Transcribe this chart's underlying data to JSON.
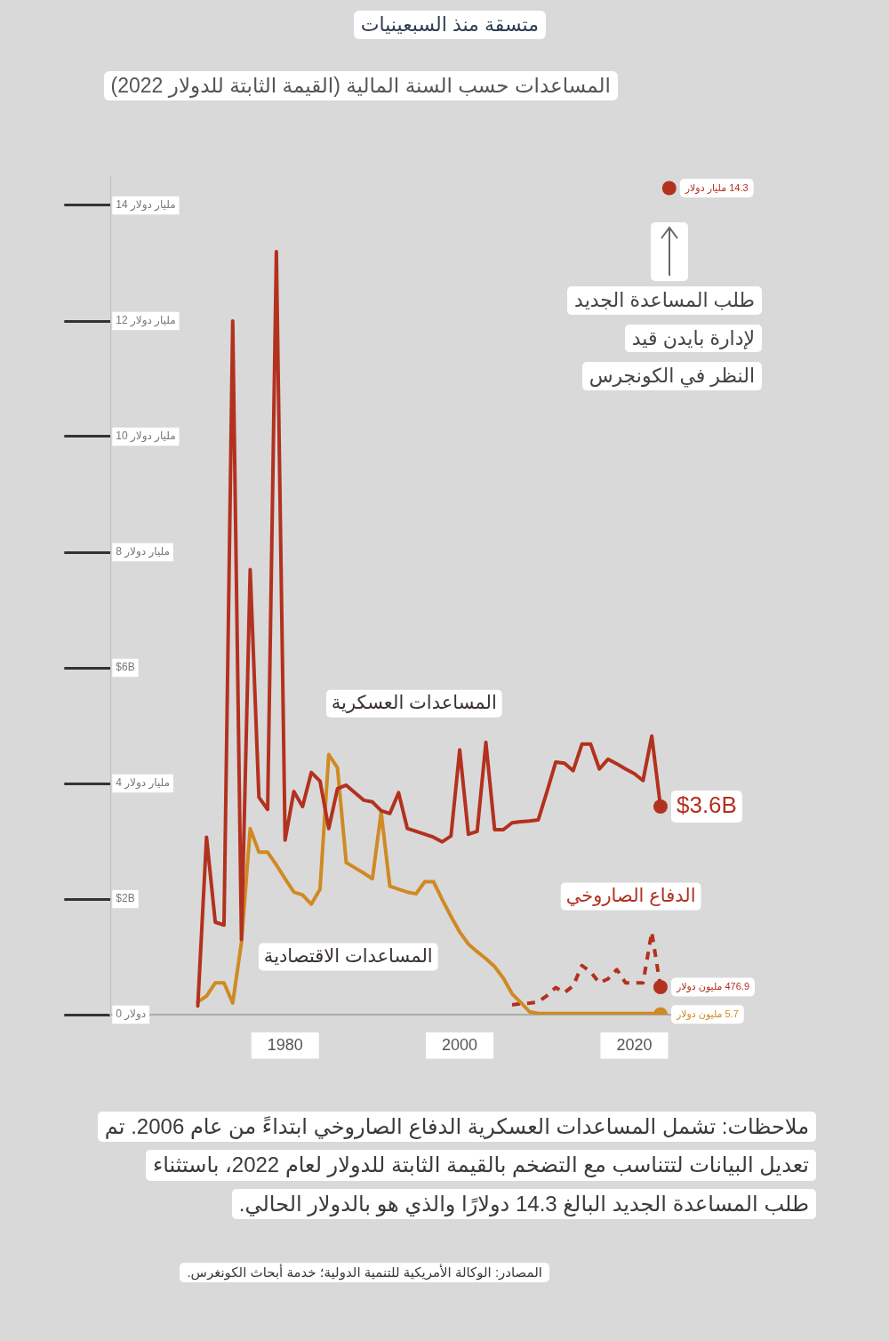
{
  "chart_data": {
    "type": "line",
    "title": "متسقة منذ السبعينيات",
    "subtitle": "المساعدات حسب السنة المالية (القيمة الثابتة للدولار 2022)",
    "xlim": [
      1960,
      2025
    ],
    "xticks": [
      1980,
      2000,
      2020
    ],
    "ylim": [
      0,
      14.5
    ],
    "yticks": [
      {
        "value": 0,
        "label": "0 دولار"
      },
      {
        "value": 2,
        "label": "$2B"
      },
      {
        "value": 4,
        "label": "4 مليار دولار"
      },
      {
        "value": 6,
        "label": "$6B"
      },
      {
        "value": 8,
        "label": "8 مليار دولار"
      },
      {
        "value": 10,
        "label": "10 مليار دولار"
      },
      {
        "value": 12,
        "label": "12 مليار دولار"
      },
      {
        "value": 14,
        "label": "14 مليار دولار"
      }
    ],
    "legend": false,
    "x": [
      1970,
      1971,
      1972,
      1973,
      1974,
      1975,
      1976,
      1977,
      1978,
      1979,
      1980,
      1981,
      1982,
      1983,
      1984,
      1985,
      1986,
      1987,
      1988,
      1989,
      1990,
      1991,
      1992,
      1993,
      1994,
      1995,
      1996,
      1997,
      1998,
      1999,
      2000,
      2001,
      2002,
      2003,
      2004,
      2005,
      2006,
      2007,
      2008,
      2009,
      2010,
      2011,
      2012,
      2013,
      2014,
      2015,
      2016,
      2017,
      2018,
      2019,
      2020,
      2021,
      2022,
      2023
    ],
    "series": [
      {
        "name": "المساعدات العسكرية",
        "color": "#b3311f",
        "values": [
          0.15,
          3.07,
          1.6,
          1.55,
          12.0,
          1.3,
          7.7,
          3.76,
          3.55,
          13.2,
          3.02,
          3.86,
          3.6,
          4.19,
          4.04,
          3.22,
          3.91,
          3.97,
          3.84,
          3.71,
          3.68,
          3.53,
          3.48,
          3.84,
          3.22,
          3.17,
          3.12,
          3.07,
          2.99,
          3.09,
          4.58,
          3.12,
          3.17,
          4.71,
          3.2,
          3.2,
          3.32,
          3.34,
          3.35,
          3.37,
          3.86,
          4.37,
          4.35,
          4.22,
          4.68,
          4.68,
          4.25,
          4.42,
          4.34,
          4.25,
          4.17,
          4.05,
          4.82,
          3.6
        ],
        "value_labels": [
          null,
          null,
          null,
          null,
          null,
          null,
          null,
          null,
          null,
          null,
          null,
          null,
          null,
          null,
          null,
          null,
          null,
          null,
          null,
          null,
          null,
          null,
          null,
          null,
          null,
          null,
          null,
          null,
          null,
          null,
          null,
          null,
          null,
          null,
          null,
          null,
          null,
          null,
          null,
          null,
          null,
          null,
          null,
          null,
          null,
          null,
          null,
          null,
          null,
          null,
          null,
          null,
          null,
          "$3.6B"
        ]
      },
      {
        "name": "المساعدات الاقتصادية",
        "color": "#d08a23",
        "values": [
          0.22,
          0.32,
          0.55,
          0.55,
          0.2,
          1.25,
          3.22,
          2.81,
          2.81,
          2.59,
          2.35,
          2.12,
          2.07,
          1.91,
          2.17,
          4.5,
          4.27,
          2.63,
          2.54,
          2.45,
          2.35,
          3.5,
          2.22,
          2.17,
          2.12,
          2.09,
          2.3,
          2.3,
          1.99,
          1.7,
          1.43,
          1.22,
          1.09,
          0.97,
          0.83,
          0.63,
          0.36,
          0.21,
          0.05,
          0.02,
          0.02,
          0.02,
          0.02,
          0.02,
          0.02,
          0.02,
          0.02,
          0.02,
          0.02,
          0.02,
          0.02,
          0.02,
          0.02,
          0.0057
        ]
      },
      {
        "name": "الدفاع الصاروخي",
        "color": "#b3311f",
        "line_style": "dashed",
        "x": [
          2006,
          2007,
          2008,
          2009,
          2010,
          2011,
          2012,
          2013,
          2014,
          2015,
          2016,
          2017,
          2018,
          2019,
          2020,
          2021,
          2022,
          2023
        ],
        "values": [
          0.17,
          0.19,
          0.2,
          0.22,
          0.33,
          0.47,
          0.38,
          0.5,
          0.85,
          0.74,
          0.55,
          0.62,
          0.78,
          0.55,
          0.55,
          0.55,
          1.43,
          0.4769
        ]
      },
      {
        "type": "scatter",
        "color": "#b3311f",
        "marker": "circle",
        "x": [
          2024
        ],
        "values": [
          14.3
        ],
        "value_labels": [
          "14.3 مليار دولار"
        ]
      }
    ],
    "annotations": [
      {
        "text": "476.9 مليون دولار",
        "x": 2023,
        "y": 0.4769
      },
      {
        "text": "5.7 مليون دولار",
        "x": 2023,
        "y": 0.0057
      },
      "طلب المساعدة الجديد\nلإدارة بايدن قيد\nالنظر في الكونجرس",
      "ملاحظات: تشمل المساعدات العسكرية الدفاع الصاروخي ابتداءً من عام 2006. تم\nتعديل البيانات لتتناسب مع التضخم بالقيمة الثابتة للدولار لعام 2022، باستثناء\nطلب المساعدة الجديد البالغ 14.3 دولارًا والذي هو بالدولار الحالي.",
      "المصادر: الوكالة الأمريكية للتنمية الدولية؛ خدمة أبحاث الكونغرس."
    ]
  }
}
